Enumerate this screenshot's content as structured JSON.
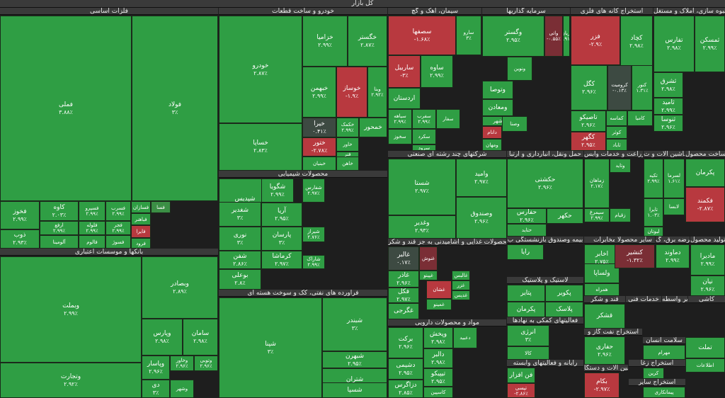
{
  "title": "کل بازار",
  "colors": {
    "strong_green": "#2f9e44",
    "mid_green": "#3b8f45",
    "dark_green": "#2d6f3a",
    "red": "#b8393f",
    "dark_red": "#7a2e35",
    "gray": "#3d4a42",
    "header": "#3a3a3a"
  },
  "sectors": [
    {
      "name": "فلزات اساسی"
    },
    {
      "name": "خودرو و ساخت قطعات"
    },
    {
      "name": "سیمان، آهک و گچ"
    },
    {
      "name": "سرمایه گذاریها"
    },
    {
      "name": "استخراج کانه های فلزی"
    },
    {
      "name": "انبوه سازی، املاک و مستغل"
    },
    {
      "name": "محصولات شیمیایی"
    },
    {
      "name": "بانکها و موسسات اعتباری"
    },
    {
      "name": "فراورده های نفتی، کک و سوخت هسته ای"
    },
    {
      "name": "شرکتهای چند رشته ای صنعتی"
    },
    {
      "name": "حمل ونقل، انبارداری و ارتبا"
    },
    {
      "name": "زراعت و خدمات وابس"
    },
    {
      "name": "ماشین آلات و ت"
    },
    {
      "name": "ساخت محصول"
    },
    {
      "name": "محصولات غذایی و آشامیدنی به جز قند و شکر"
    },
    {
      "name": "بیمه وصندوق بازنشستگی ب"
    },
    {
      "name": "مخابرات"
    },
    {
      "name": "عرضه برق، گ"
    },
    {
      "name": "سایر محصولا"
    },
    {
      "name": "تولید محصول"
    },
    {
      "name": "لاستیک و پلاستیک"
    },
    {
      "name": "قند و شکر"
    },
    {
      "name": "خدمات فنی"
    },
    {
      "name": "سایر واسطه"
    },
    {
      "name": "کاشی"
    },
    {
      "name": "مواد و محصولات دارویی"
    },
    {
      "name": "فعالیتهای کمکی به نهادها"
    },
    {
      "name": "استخراج نفت گاز و"
    },
    {
      "name": "سلامت انسان"
    },
    {
      "name": "رایانه و فعالیتهای وابسته"
    },
    {
      "name": "ماشین آلات و دستگا"
    },
    {
      "name": "استخراج زغا"
    },
    {
      "name": "استخراج سایر"
    }
  ],
  "tiles": [
    {
      "name": "فملی",
      "pct": "۳.۸۸٪"
    },
    {
      "name": "فولاد",
      "pct": "۳٪"
    },
    {
      "name": "فخوز",
      "pct": "۲.۹۹٪"
    },
    {
      "name": "کاوه",
      "pct": "۲.۰۳٪"
    },
    {
      "name": "فسپرو",
      "pct": "۲.۹۹٪"
    },
    {
      "name": "فسرب",
      "pct": "۲.۹۹٪"
    },
    {
      "name": "ذوب",
      "pct": "۲.۹۳٪"
    },
    {
      "name": "ارفع",
      "pct": "۲.۹۹٪"
    },
    {
      "name": "فلوله",
      "pct": "۲.۹۹٪"
    },
    {
      "name": "فجر",
      "pct": "۲.۹۹٪"
    },
    {
      "name": "فایرا",
      "pct": ""
    },
    {
      "name": "فسازان",
      "pct": ""
    },
    {
      "name": "فباهنر",
      "pct": ""
    },
    {
      "name": "فسا",
      "pct": ""
    },
    {
      "name": "آلومینا",
      "pct": ""
    },
    {
      "name": "فالوم",
      "pct": ""
    },
    {
      "name": "فسوژ",
      "pct": ""
    },
    {
      "name": "فرود",
      "pct": ""
    },
    {
      "name": "خودرو",
      "pct": "۲.۸۷٪"
    },
    {
      "name": "خساپا",
      "pct": "۲.۸۳٪"
    },
    {
      "name": "خزامیا",
      "pct": "۲.۹۹٪"
    },
    {
      "name": "خگستر",
      "pct": "۲.۸۷٪"
    },
    {
      "name": "خبهمن",
      "pct": "۲.۹۹٪"
    },
    {
      "name": "خوساز",
      "pct": "-۱.۹٪"
    },
    {
      "name": "وبنا",
      "pct": "۲.۹۲٪"
    },
    {
      "name": "خیرا",
      "pct": "۰.۴۱٪"
    },
    {
      "name": "خکمک",
      "pct": "۲.۹۹٪"
    },
    {
      "name": "ختور",
      "pct": "-۲.۷۸٪"
    },
    {
      "name": "خاور",
      "pct": ""
    },
    {
      "name": "خمحور",
      "pct": ""
    },
    {
      "name": "خبنیان",
      "pct": ""
    },
    {
      "name": "خاهن",
      "pct": ""
    },
    {
      "name": "فنر",
      "pct": ""
    },
    {
      "name": "سصفها",
      "pct": "-۱.۶۸٪"
    },
    {
      "name": "سارو",
      "pct": "۳٪"
    },
    {
      "name": "ساربیل",
      "pct": "-۳٪"
    },
    {
      "name": "ساوه",
      "pct": "۲.۹۹٪"
    },
    {
      "name": "اردستان",
      "pct": ""
    },
    {
      "name": "سیاهه",
      "pct": "۲.۹۹٪"
    },
    {
      "name": "سفرب",
      "pct": "۲.۹۹٪"
    },
    {
      "name": "سخوز",
      "pct": ""
    },
    {
      "name": "سکرد",
      "pct": ""
    },
    {
      "name": "سفار",
      "pct": ""
    },
    {
      "name": "سرود",
      "pct": ""
    },
    {
      "name": "وگستر",
      "pct": "۲.۹۵٪"
    },
    {
      "name": "واتی",
      "pct": "-۰.۵۵٪"
    },
    {
      "name": "آریان",
      "pct": "۲.۹۱٪"
    },
    {
      "name": "ونوین",
      "pct": ""
    },
    {
      "name": "وتوصا",
      "pct": ""
    },
    {
      "name": "ومعادن",
      "pct": ""
    },
    {
      "name": "شهر",
      "pct": ""
    },
    {
      "name": "دانام",
      "pct": ""
    },
    {
      "name": "ومهان",
      "pct": ""
    },
    {
      "name": "وصنا",
      "pct": ""
    },
    {
      "name": "فزر",
      "pct": "-۲.۹٪"
    },
    {
      "name": "کچاد",
      "pct": "۲.۹۸٪"
    },
    {
      "name": "کگل",
      "pct": "۲.۹۶٪"
    },
    {
      "name": "کرومیت",
      "pct": "-۰.۱۳٪"
    },
    {
      "name": "کنور",
      "pct": "۱.۳۱٪"
    },
    {
      "name": "تاصیکو",
      "pct": "۲.۹۶٪"
    },
    {
      "name": "کگهر",
      "pct": "۲.۹۵٪"
    },
    {
      "name": "کماسه",
      "pct": ""
    },
    {
      "name": "کامیا",
      "pct": ""
    },
    {
      "name": "کوثر",
      "pct": ""
    },
    {
      "name": "ثاباد",
      "pct": ""
    },
    {
      "name": "تفارس",
      "pct": "۲.۹۸٪"
    },
    {
      "name": "ثشرق",
      "pct": "۲.۹۸٪"
    },
    {
      "name": "ثامید",
      "pct": "۲.۹۹٪"
    },
    {
      "name": "ثنوسا",
      "pct": "۲.۹۶٪"
    },
    {
      "name": "ثمسکن",
      "pct": "۲.۹۹٪"
    },
    {
      "name": "شپدیس",
      "pct": "۲.۹۸٪"
    },
    {
      "name": "شگویا",
      "pct": "۲.۹۹٪"
    },
    {
      "name": "شفارس",
      "pct": "۲.۹۷٪"
    },
    {
      "name": "آریا",
      "pct": "۲.۹۵٪"
    },
    {
      "name": "نوری",
      "pct": "۳٪"
    },
    {
      "name": "پارسان",
      "pct": "۳٪"
    },
    {
      "name": "شیراز",
      "pct": "۲.۷۶٪"
    },
    {
      "name": "شغدیر",
      "pct": "۳٪"
    },
    {
      "name": "شفن",
      "pct": "۲.۸۶٪"
    },
    {
      "name": "کرماشا",
      "pct": "۲.۹۷٪"
    },
    {
      "name": "شاراک",
      "pct": "۲.۹۹٪"
    },
    {
      "name": "بوعلی",
      "pct": "۲.۸٪"
    },
    {
      "name": "شپنا",
      "pct": "۳٪"
    },
    {
      "name": "شبندر",
      "pct": "۳٪"
    },
    {
      "name": "شتران",
      "pct": "۳٪"
    },
    {
      "name": "شبهرن",
      "pct": "۲.۹۵٪"
    },
    {
      "name": "شسپا",
      "pct": ""
    },
    {
      "name": "وبملت",
      "pct": "۲.۹۹٪"
    },
    {
      "name": "وبصادر",
      "pct": "۲.۸۹٪"
    },
    {
      "name": "وتجارت",
      "pct": "۲.۹۲٪"
    },
    {
      "name": "وپارس",
      "pct": "۲.۹۸٪"
    },
    {
      "name": "سامان",
      "pct": "۲.۹۸٪"
    },
    {
      "name": "وپاسار",
      "pct": "۲.۹۶٪"
    },
    {
      "name": "وخاور",
      "pct": "۲.۹۶٪"
    },
    {
      "name": "وتوبی",
      "pct": "۲.۹۶٪"
    },
    {
      "name": "دی",
      "pct": "۳٪"
    },
    {
      "name": "وشهر",
      "pct": ""
    },
    {
      "name": "شستا",
      "pct": "۲.۹۷٪"
    },
    {
      "name": "وامید",
      "pct": "۲.۹۷٪"
    },
    {
      "name": "وغدیر",
      "pct": "۲.۹۳٪"
    },
    {
      "name": "وصندوق",
      "pct": "۲.۹۶٪"
    },
    {
      "name": "حکشتی",
      "pct": "۲.۹۶٪"
    },
    {
      "name": "حفارس",
      "pct": "۲.۹۶٪"
    },
    {
      "name": "حتاید",
      "pct": ""
    },
    {
      "name": "حکهر",
      "pct": ""
    },
    {
      "name": "غالبر",
      "pct": "۰.۱۷٪"
    },
    {
      "name": "غاذر",
      "pct": "۲.۹۶٪"
    },
    {
      "name": "غپینو",
      "pct": ""
    },
    {
      "name": "غنوش",
      "pct": ""
    },
    {
      "name": "فکل",
      "pct": "۲.۹۷٪"
    },
    {
      "name": "غشان",
      "pct": ""
    },
    {
      "name": "غزر",
      "pct": ""
    },
    {
      "name": "غدیس",
      "pct": ""
    },
    {
      "name": "غالبس",
      "pct": ""
    },
    {
      "name": "غمینو",
      "pct": ""
    },
    {
      "name": "غگرجی",
      "pct": ""
    },
    {
      "name": "برکت",
      "pct": "۲.۹۶٪"
    },
    {
      "name": "وپخش",
      "pct": "۲.۹۸٪"
    },
    {
      "name": "دعبید",
      "pct": ""
    },
    {
      "name": "دشیمی",
      "pct": "۲.۹۵٪"
    },
    {
      "name": "دالبر",
      "pct": "۲.۹۸٪"
    },
    {
      "name": "دزاگرس",
      "pct": "۲.۸۵٪"
    },
    {
      "name": "تیپیکو",
      "pct": "۲.۹۵٪"
    },
    {
      "name": "کاسپین",
      "pct": ""
    },
    {
      "name": "رایا",
      "pct": ""
    },
    {
      "name": "پتایر",
      "pct": ""
    },
    {
      "name": "پکرمان",
      "pct": ""
    },
    {
      "name": "پکویر",
      "pct": ""
    },
    {
      "name": "پلاسک",
      "pct": ""
    },
    {
      "name": "انرژی",
      "pct": "۳٪"
    },
    {
      "name": "کالا",
      "pct": ""
    },
    {
      "name": "فن افزار",
      "pct": ""
    },
    {
      "name": "تپسی",
      "pct": "-۲.۸۶٪"
    },
    {
      "name": "اخابر",
      "pct": "۲.۷۵٪"
    },
    {
      "name": "همراه",
      "pct": ""
    },
    {
      "name": "قشکر",
      "pct": ""
    },
    {
      "name": "حفاری",
      "pct": "۲.۹۶٪"
    },
    {
      "name": "بکام",
      "pct": "-۲.۹۷٪"
    },
    {
      "name": "ولساپا",
      "pct": ""
    },
    {
      "name": "زماهان",
      "pct": "۲.۱۷٪"
    },
    {
      "name": "سیمرغ",
      "pct": "۲.۹۹٪"
    },
    {
      "name": "زقیام",
      "pct": ""
    },
    {
      "name": "وتاید",
      "pct": ""
    },
    {
      "name": "تکیه",
      "pct": "۲.۹۹٪"
    },
    {
      "name": "لسرما",
      "pct": "۱.۶۱٪"
    },
    {
      "name": "لابسا",
      "pct": ""
    },
    {
      "name": "تایرا",
      "pct": "۱.۰۳٪"
    },
    {
      "name": "لبوتان",
      "pct": ""
    },
    {
      "name": "پکرمان",
      "pct": ""
    },
    {
      "name": "فکمند",
      "pct": "-۲.۸۷٪"
    },
    {
      "name": "کنشیر",
      "pct": "-۱.۳۲٪"
    },
    {
      "name": "دماوند",
      "pct": "۲.۹۹٪"
    },
    {
      "name": "مادیرا",
      "pct": "۲.۹۹٪"
    },
    {
      "name": "نیان",
      "pct": "۲.۹۶٪"
    },
    {
      "name": "مهرام",
      "pct": ""
    },
    {
      "name": "کرین",
      "pct": ""
    },
    {
      "name": "پیمانکاری",
      "pct": ""
    },
    {
      "name": "تملت",
      "pct": ""
    },
    {
      "name": "اطلاعات",
      "pct": ""
    }
  ]
}
